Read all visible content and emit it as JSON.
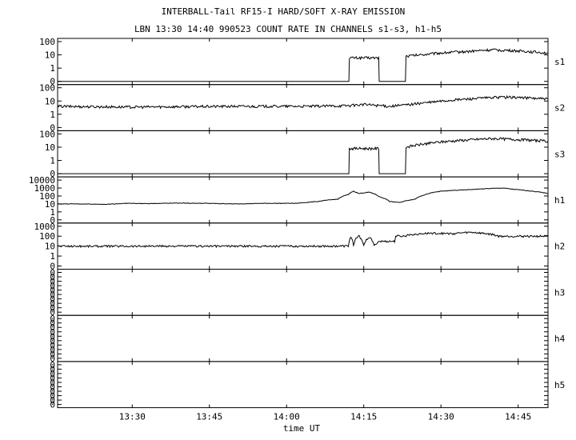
{
  "chart_data": {
    "type": "line",
    "title": "INTERBALL-Tail RF15-I HARD/SOFT X-RAY EMISSION",
    "subtitle": "LBN 13:30 14:40 990523  COUNT RATE IN CHANNELS s1-s3, h1-h5",
    "xlabel": "time UT",
    "x_ticks": [
      "13:30",
      "13:45",
      "14:00",
      "14:15",
      "14:30",
      "14:45"
    ],
    "x_tick_minutes": [
      810,
      825,
      840,
      855,
      870,
      885
    ],
    "xlim_minutes": [
      795.5,
      890.8
    ],
    "grid": false,
    "panels": [
      {
        "name": "s1",
        "y_ticks": [
          "100",
          "10",
          "1",
          "0"
        ],
        "scale": "log",
        "series": [
          [
            795.5,
            0
          ],
          [
            852.1,
            0
          ],
          [
            852.2,
            6
          ],
          [
            857.9,
            6
          ],
          [
            858.0,
            0
          ],
          [
            863.1,
            0
          ],
          [
            863.2,
            8
          ],
          [
            866,
            10
          ],
          [
            870,
            14
          ],
          [
            875,
            18
          ],
          [
            880,
            24
          ],
          [
            885,
            20
          ],
          [
            890.8,
            14
          ]
        ]
      },
      {
        "name": "s2",
        "y_ticks": [
          "100",
          "10",
          "1",
          "0"
        ],
        "scale": "log",
        "series": [
          [
            795.5,
            4
          ],
          [
            810,
            3.5
          ],
          [
            820,
            3.8
          ],
          [
            830,
            4
          ],
          [
            845,
            4
          ],
          [
            852,
            4.5
          ],
          [
            855,
            5.5
          ],
          [
            860,
            4
          ],
          [
            863,
            5
          ],
          [
            868,
            8
          ],
          [
            875,
            14
          ],
          [
            882,
            20
          ],
          [
            886,
            18
          ],
          [
            890.8,
            14
          ]
        ]
      },
      {
        "name": "s3",
        "y_ticks": [
          "100",
          "10",
          "1",
          "0"
        ],
        "scale": "log",
        "series": [
          [
            795.5,
            0
          ],
          [
            852.1,
            0
          ],
          [
            852.2,
            8
          ],
          [
            857.9,
            8
          ],
          [
            858.0,
            0
          ],
          [
            863.1,
            0
          ],
          [
            863.2,
            10
          ],
          [
            866,
            16
          ],
          [
            870,
            25
          ],
          [
            875,
            35
          ],
          [
            880,
            45
          ],
          [
            885,
            38
          ],
          [
            890.8,
            28
          ]
        ]
      },
      {
        "name": "h1",
        "y_ticks": [
          "10000",
          "1000",
          "100",
          "10",
          "1",
          "0"
        ],
        "scale": "log",
        "series": [
          [
            795.5,
            10
          ],
          [
            800,
            10
          ],
          [
            805,
            9
          ],
          [
            809,
            12
          ],
          [
            813,
            11
          ],
          [
            818,
            13
          ],
          [
            824,
            12
          ],
          [
            830,
            10
          ],
          [
            836,
            12
          ],
          [
            842,
            12
          ],
          [
            846,
            20
          ],
          [
            850,
            40
          ],
          [
            852,
            150
          ],
          [
            853,
            400
          ],
          [
            854,
            200
          ],
          [
            856,
            300
          ],
          [
            858,
            80
          ],
          [
            860,
            20
          ],
          [
            862,
            15
          ],
          [
            865,
            40
          ],
          [
            867,
            150
          ],
          [
            870,
            400
          ],
          [
            875,
            600
          ],
          [
            880,
            900
          ],
          [
            882,
            1000
          ],
          [
            884,
            700
          ],
          [
            887,
            450
          ],
          [
            890.8,
            200
          ]
        ]
      },
      {
        "name": "h2",
        "y_ticks": [
          "1000",
          "100",
          "10",
          "1",
          "0"
        ],
        "scale": "log",
        "series": [
          [
            795.5,
            10
          ],
          [
            852,
            10
          ],
          [
            852.5,
            80
          ],
          [
            853,
            10
          ],
          [
            854,
            100
          ],
          [
            855,
            10
          ],
          [
            856,
            80
          ],
          [
            857,
            10
          ],
          [
            858,
            30
          ],
          [
            861,
            30
          ],
          [
            861.2,
            100
          ],
          [
            863,
            100
          ],
          [
            864,
            150
          ],
          [
            868,
            200
          ],
          [
            872,
            180
          ],
          [
            876,
            250
          ],
          [
            880,
            150
          ],
          [
            881.2,
            100
          ],
          [
            890.8,
            100
          ]
        ]
      },
      {
        "name": "h3",
        "y_ticks": [
          "0",
          "0",
          "0",
          "0",
          "0",
          "0",
          "0",
          "0",
          "0",
          "0"
        ],
        "scale": "none",
        "series": []
      },
      {
        "name": "h4",
        "y_ticks": [
          "0",
          "0",
          "0",
          "0",
          "0",
          "0",
          "0",
          "0",
          "0",
          "0"
        ],
        "scale": "none",
        "series": []
      },
      {
        "name": "h5",
        "y_ticks": [
          "0",
          "0",
          "0",
          "0",
          "0",
          "0",
          "0",
          "0",
          "0",
          "0"
        ],
        "scale": "none",
        "series": []
      }
    ]
  }
}
